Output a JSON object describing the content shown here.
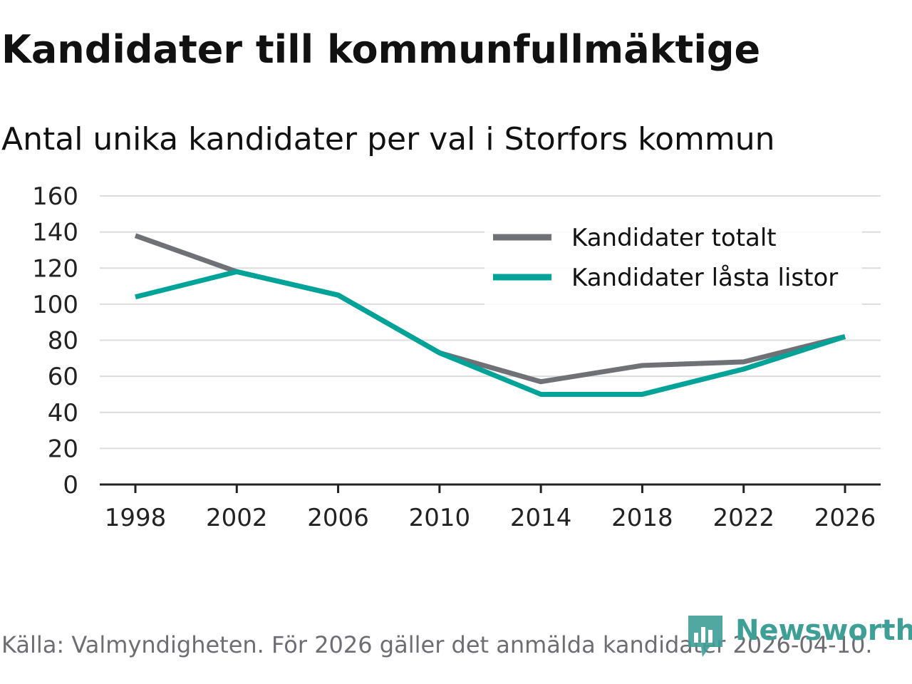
{
  "header": {
    "title": "Kandidater till kommunfullmäktige",
    "subtitle": "Antal unika kandidater per val i Storfors kommun"
  },
  "footer": {
    "source": "Källa: Valmyndigheten. För 2026 gäller det anmälda kandidater 2026-04-10.",
    "brand": "Newsworthy"
  },
  "colors": {
    "total": "#707077",
    "locked": "#00a398",
    "grid": "#dcdcdc",
    "axis": "#222222",
    "brand": "#3e9f96"
  },
  "chart_data": {
    "type": "line",
    "title": "Kandidater till kommunfullmäktige",
    "subtitle": "Antal unika kandidater per val i Storfors kommun",
    "xlabel": "",
    "ylabel": "",
    "x": [
      "1998",
      "2002",
      "2006",
      "2010",
      "2014",
      "2018",
      "2022",
      "2026"
    ],
    "ylim": [
      0,
      160
    ],
    "yticks": [
      0,
      20,
      40,
      60,
      80,
      100,
      120,
      140,
      160
    ],
    "grid": true,
    "legend_position": "top-right",
    "series": [
      {
        "name": "Kandidater totalt",
        "color": "#707077",
        "values": [
          138,
          118,
          105,
          73,
          57,
          66,
          68,
          82
        ]
      },
      {
        "name": "Kandidater låsta listor",
        "color": "#00a398",
        "values": [
          104,
          118,
          105,
          73,
          50,
          50,
          64,
          82
        ]
      }
    ]
  }
}
